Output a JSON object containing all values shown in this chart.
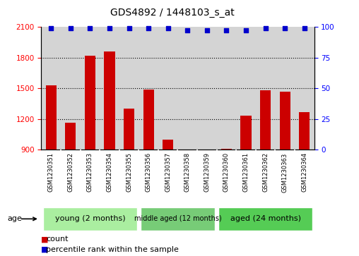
{
  "title": "GDS4892 / 1448103_s_at",
  "samples": [
    "GSM1230351",
    "GSM1230352",
    "GSM1230353",
    "GSM1230354",
    "GSM1230355",
    "GSM1230356",
    "GSM1230357",
    "GSM1230358",
    "GSM1230359",
    "GSM1230360",
    "GSM1230361",
    "GSM1230362",
    "GSM1230363",
    "GSM1230364"
  ],
  "counts": [
    1530,
    1165,
    1820,
    1860,
    1300,
    1490,
    1000,
    870,
    860,
    910,
    1230,
    1480,
    1470,
    1270
  ],
  "percentile_ranks": [
    99,
    99,
    99,
    99,
    99,
    99,
    99,
    97,
    97,
    97,
    97,
    99,
    99,
    99
  ],
  "bar_color": "#cc0000",
  "dot_color": "#0000cc",
  "ylim_left": [
    900,
    2100
  ],
  "ylim_right": [
    0,
    100
  ],
  "yticks_left": [
    900,
    1200,
    1500,
    1800,
    2100
  ],
  "yticks_right": [
    0,
    25,
    50,
    75,
    100
  ],
  "groups": [
    {
      "label": "young (2 months)",
      "start": 0,
      "end": 5,
      "color": "#aaeea0"
    },
    {
      "label": "middle aged (12 months)",
      "start": 5,
      "end": 9,
      "color": "#77cc77"
    },
    {
      "label": "aged (24 months)",
      "start": 9,
      "end": 14,
      "color": "#55cc55"
    }
  ],
  "age_label": "age",
  "legend_count_label": "count",
  "legend_pct_label": "percentile rank within the sample",
  "background_gray": "#d4d4d4",
  "grid_color": "#000000",
  "title_fontsize": 10,
  "tick_fontsize": 7.5,
  "label_fontsize": 8
}
